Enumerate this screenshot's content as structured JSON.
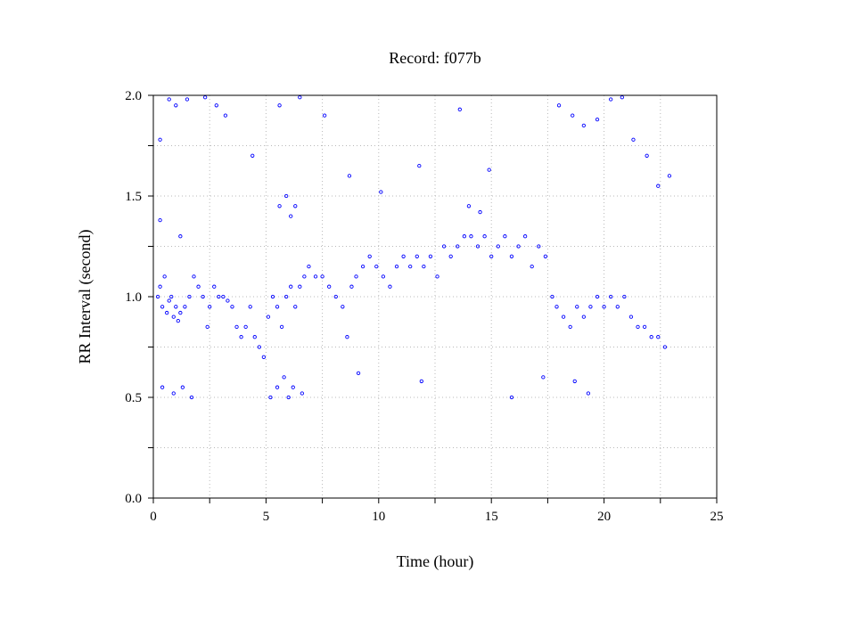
{
  "chart_data": {
    "type": "scatter",
    "title": "Record:  f077b",
    "xlabel": "Time (hour)",
    "ylabel": "RR Interval (second)",
    "xlim": [
      0,
      25
    ],
    "ylim": [
      0.0,
      2.0
    ],
    "x_ticks": [
      "0",
      "5",
      "10",
      "15",
      "20",
      "25"
    ],
    "y_ticks": [
      "0.0",
      "0.5",
      "1.0",
      "1.5",
      "2.0"
    ],
    "x_tick_values": [
      0,
      5,
      10,
      15,
      20,
      25
    ],
    "y_tick_values": [
      0.0,
      0.5,
      1.0,
      1.5,
      2.0
    ],
    "x_grid_step": 2.5,
    "y_grid_step": 0.25,
    "grid": true,
    "marker": "open-circle",
    "series_color": "#0000ff",
    "series": [
      {
        "points": [
          [
            0.2,
            1.0
          ],
          [
            0.3,
            1.05
          ],
          [
            0.4,
            0.95
          ],
          [
            0.5,
            1.1
          ],
          [
            0.6,
            0.92
          ],
          [
            0.7,
            0.98
          ],
          [
            0.8,
            1.0
          ],
          [
            0.9,
            0.9
          ],
          [
            1.0,
            0.95
          ],
          [
            1.1,
            0.88
          ],
          [
            1.2,
            0.92
          ],
          [
            1.4,
            0.95
          ],
          [
            1.6,
            1.0
          ],
          [
            1.8,
            1.1
          ],
          [
            2.0,
            1.05
          ],
          [
            2.2,
            1.0
          ],
          [
            2.4,
            0.85
          ],
          [
            2.5,
            0.95
          ],
          [
            2.7,
            1.05
          ],
          [
            2.9,
            1.0
          ],
          [
            3.1,
            1.0
          ],
          [
            3.3,
            0.98
          ],
          [
            3.5,
            0.95
          ],
          [
            3.7,
            0.85
          ],
          [
            3.9,
            0.8
          ],
          [
            4.1,
            0.85
          ],
          [
            4.3,
            0.95
          ],
          [
            4.5,
            0.8
          ],
          [
            4.7,
            0.75
          ],
          [
            4.9,
            0.7
          ],
          [
            5.1,
            0.9
          ],
          [
            5.3,
            1.0
          ],
          [
            5.5,
            0.95
          ],
          [
            5.7,
            0.85
          ],
          [
            5.9,
            1.0
          ],
          [
            6.1,
            1.05
          ],
          [
            6.3,
            0.95
          ],
          [
            6.5,
            1.05
          ],
          [
            6.7,
            1.1
          ],
          [
            6.9,
            1.15
          ],
          [
            7.2,
            1.1
          ],
          [
            7.5,
            1.1
          ],
          [
            7.8,
            1.05
          ],
          [
            8.1,
            1.0
          ],
          [
            8.4,
            0.95
          ],
          [
            8.6,
            0.8
          ],
          [
            8.8,
            1.05
          ],
          [
            9.0,
            1.1
          ],
          [
            9.3,
            1.15
          ],
          [
            9.6,
            1.2
          ],
          [
            9.9,
            1.15
          ],
          [
            10.2,
            1.1
          ],
          [
            10.5,
            1.05
          ],
          [
            10.8,
            1.15
          ],
          [
            11.1,
            1.2
          ],
          [
            11.4,
            1.15
          ],
          [
            11.7,
            1.2
          ],
          [
            12.0,
            1.15
          ],
          [
            12.3,
            1.2
          ],
          [
            12.6,
            1.1
          ],
          [
            12.9,
            1.25
          ],
          [
            13.2,
            1.2
          ],
          [
            13.5,
            1.25
          ],
          [
            13.8,
            1.3
          ],
          [
            14.1,
            1.3
          ],
          [
            14.4,
            1.25
          ],
          [
            14.7,
            1.3
          ],
          [
            15.0,
            1.2
          ],
          [
            15.3,
            1.25
          ],
          [
            15.6,
            1.3
          ],
          [
            15.9,
            1.2
          ],
          [
            16.2,
            1.25
          ],
          [
            16.5,
            1.3
          ],
          [
            16.8,
            1.15
          ],
          [
            17.1,
            1.25
          ],
          [
            17.4,
            1.2
          ],
          [
            17.7,
            1.0
          ],
          [
            17.9,
            0.95
          ],
          [
            18.2,
            0.9
          ],
          [
            18.5,
            0.85
          ],
          [
            18.8,
            0.95
          ],
          [
            19.1,
            0.9
          ],
          [
            19.4,
            0.95
          ],
          [
            19.7,
            1.0
          ],
          [
            20.0,
            0.95
          ],
          [
            20.3,
            1.0
          ],
          [
            20.6,
            0.95
          ],
          [
            20.9,
            1.0
          ],
          [
            21.2,
            0.9
          ],
          [
            21.5,
            0.85
          ],
          [
            21.8,
            0.85
          ],
          [
            22.1,
            0.8
          ],
          [
            22.4,
            0.8
          ],
          [
            22.7,
            0.75
          ],
          [
            0.3,
            1.78
          ],
          [
            0.7,
            1.98
          ],
          [
            1.0,
            1.95
          ],
          [
            1.5,
            1.98
          ],
          [
            2.3,
            1.99
          ],
          [
            2.8,
            1.95
          ],
          [
            3.2,
            1.9
          ],
          [
            4.4,
            1.7
          ],
          [
            5.6,
            1.95
          ],
          [
            6.5,
            1.99
          ],
          [
            7.6,
            1.9
          ],
          [
            8.7,
            1.6
          ],
          [
            10.1,
            1.52
          ],
          [
            11.8,
            1.65
          ],
          [
            13.6,
            1.93
          ],
          [
            14.9,
            1.63
          ],
          [
            18.0,
            1.95
          ],
          [
            18.6,
            1.9
          ],
          [
            19.1,
            1.85
          ],
          [
            19.7,
            1.88
          ],
          [
            20.3,
            1.98
          ],
          [
            20.8,
            1.99
          ],
          [
            21.3,
            1.78
          ],
          [
            21.9,
            1.7
          ],
          [
            22.4,
            1.55
          ],
          [
            22.9,
            1.6
          ],
          [
            0.4,
            0.55
          ],
          [
            0.9,
            0.52
          ],
          [
            1.3,
            0.55
          ],
          [
            1.7,
            0.5
          ],
          [
            5.2,
            0.5
          ],
          [
            5.5,
            0.55
          ],
          [
            5.8,
            0.6
          ],
          [
            6.0,
            0.5
          ],
          [
            6.2,
            0.55
          ],
          [
            6.6,
            0.52
          ],
          [
            9.1,
            0.62
          ],
          [
            11.9,
            0.58
          ],
          [
            15.9,
            0.5
          ],
          [
            17.3,
            0.6
          ],
          [
            18.7,
            0.58
          ],
          [
            19.3,
            0.52
          ],
          [
            5.6,
            1.45
          ],
          [
            5.9,
            1.5
          ],
          [
            6.1,
            1.4
          ],
          [
            6.3,
            1.45
          ],
          [
            0.3,
            1.38
          ],
          [
            1.2,
            1.3
          ],
          [
            14.0,
            1.45
          ],
          [
            14.5,
            1.42
          ]
        ]
      }
    ]
  }
}
